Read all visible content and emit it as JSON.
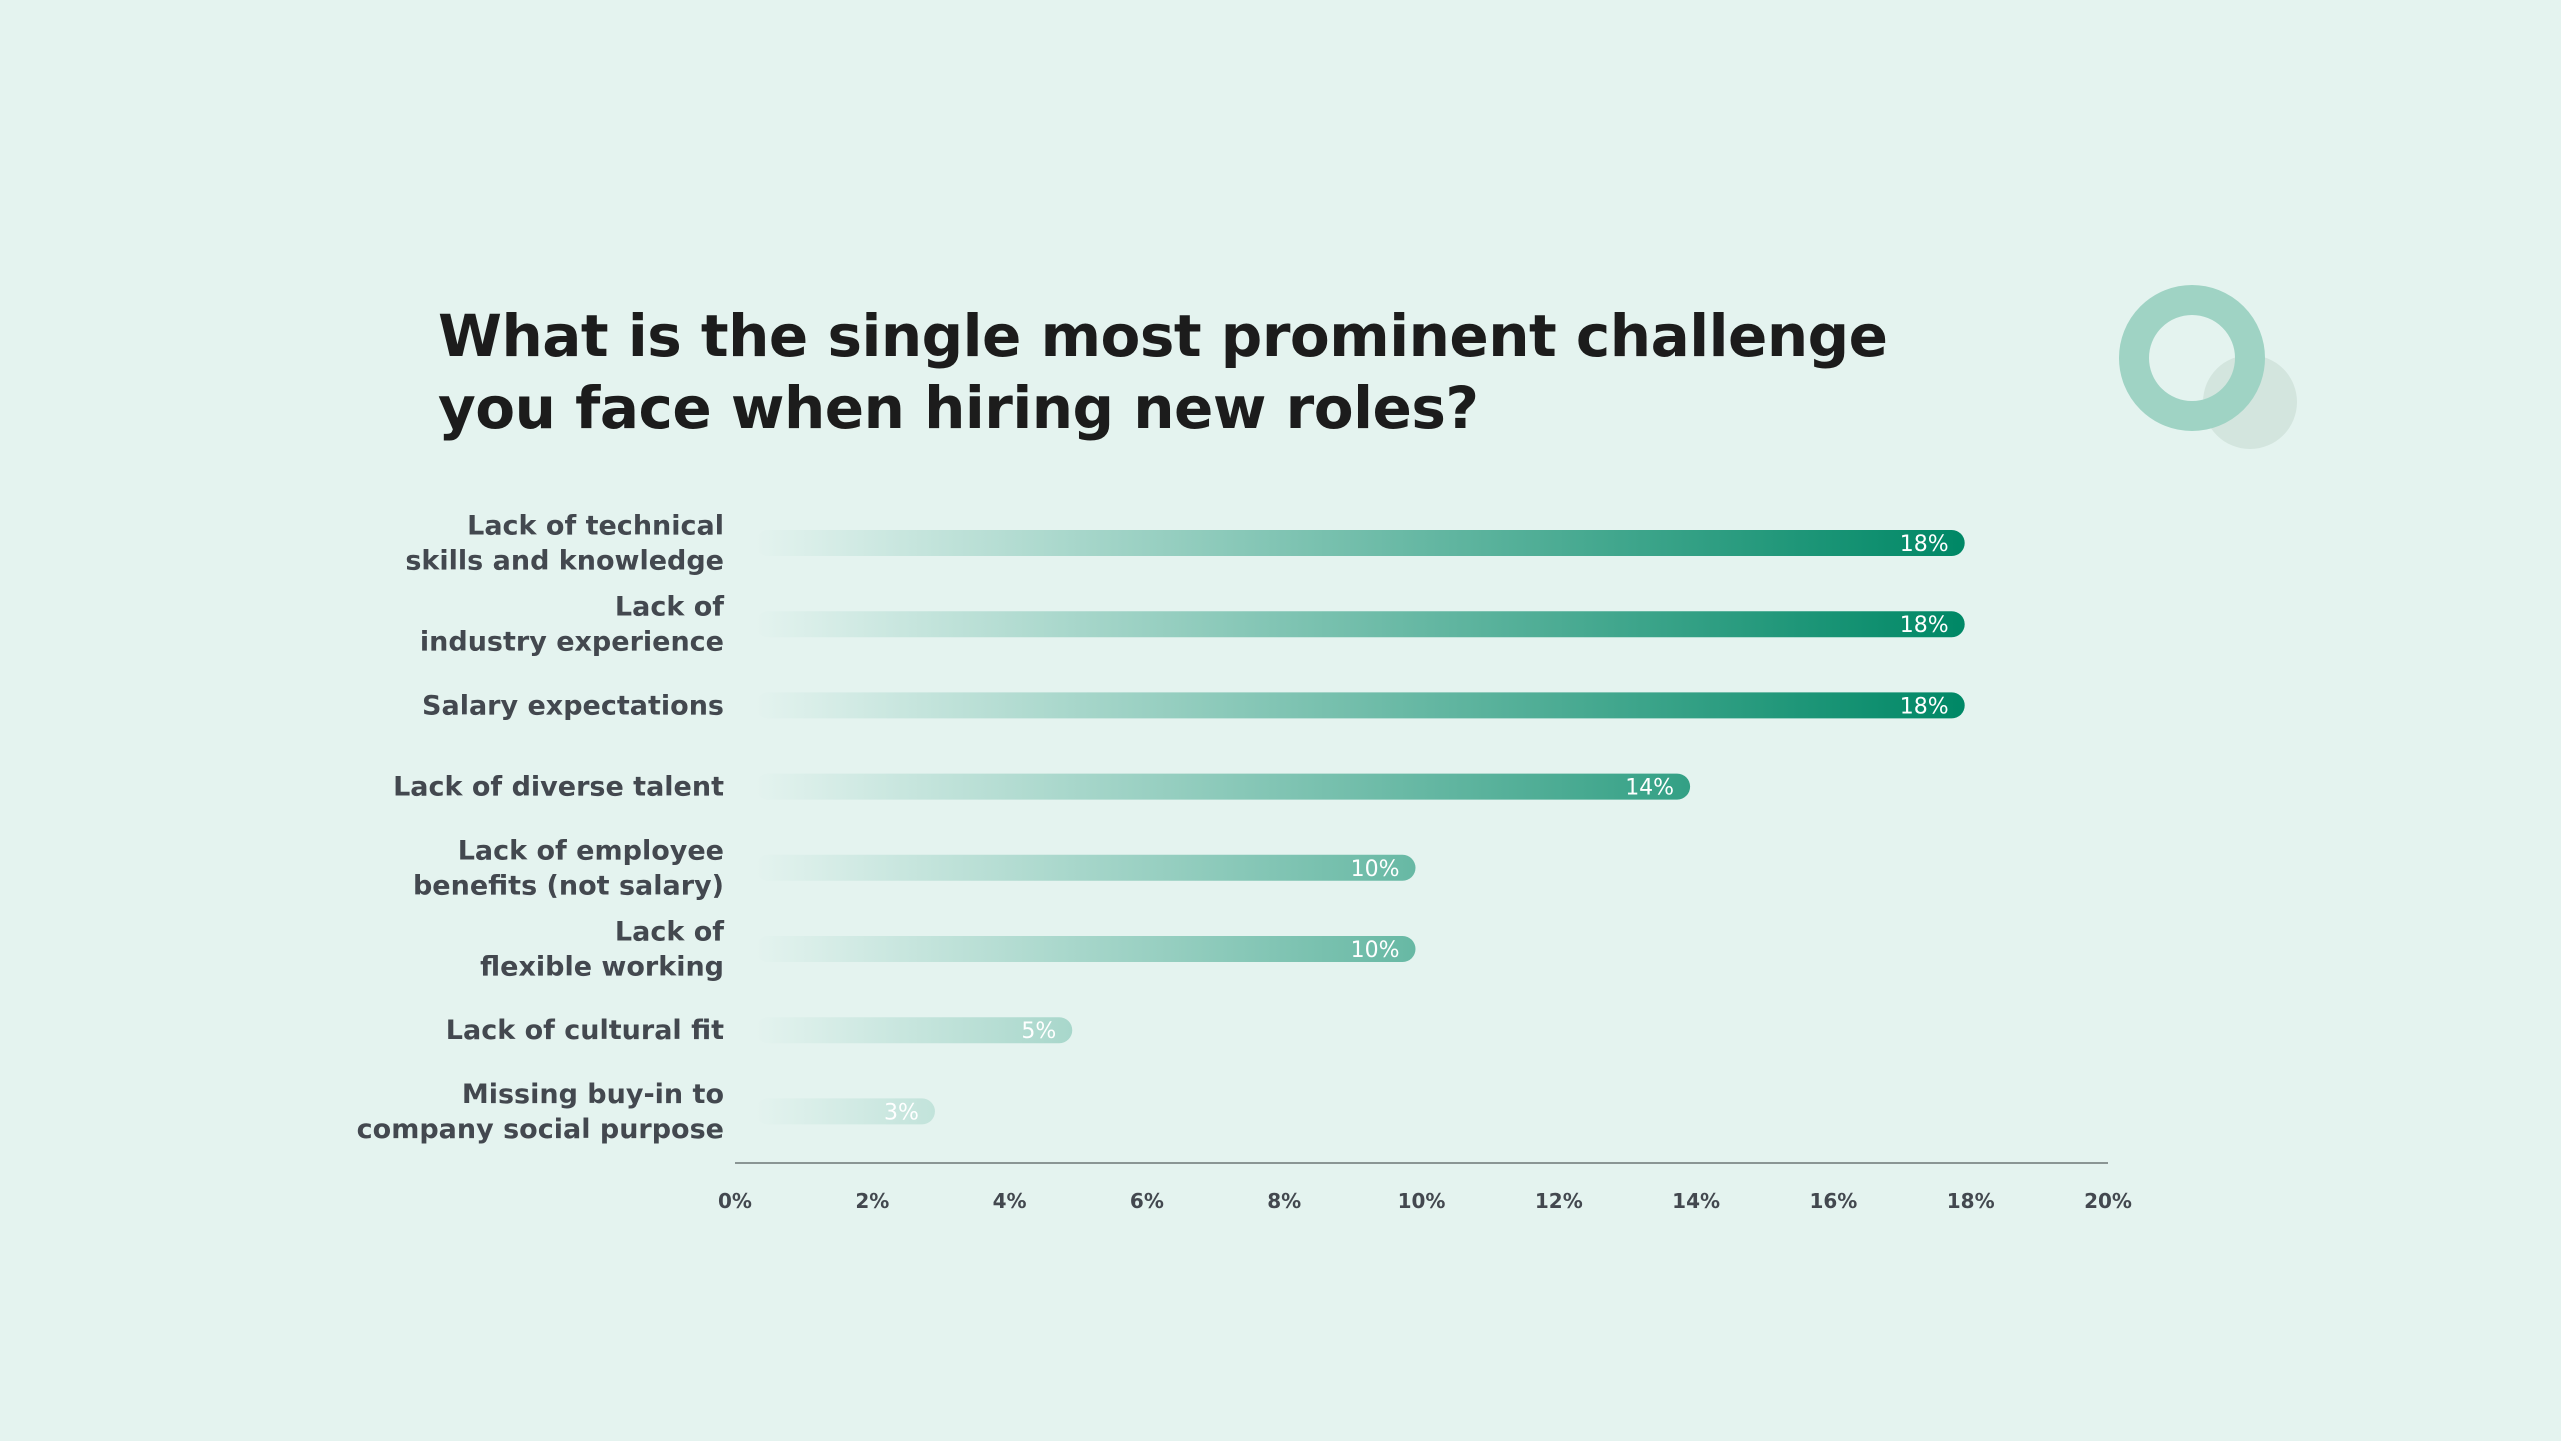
{
  "colors": {
    "background": "#e4f3ef",
    "bar_start": "#e4f3ef",
    "bar_end": "#008866",
    "title": "#1c1c1c",
    "label": "#43484f",
    "axis": "#8a9594",
    "deco_ring": "#9fd3c4",
    "deco_circle": "#d3e5de"
  },
  "icons": {
    "decoration": "ring-and-circle-decoration"
  },
  "chart_data": {
    "type": "bar",
    "orientation": "horizontal",
    "title_lines": [
      "What is the single most prominent challenge",
      "you face when hiring new roles?"
    ],
    "categories": [
      [
        "Lack of technical",
        "skills and knowledge"
      ],
      [
        "Lack of",
        "industry experience"
      ],
      [
        "Salary expectations"
      ],
      [
        "Lack of diverse talent"
      ],
      [
        "Lack of employee",
        "benefits (not salary)"
      ],
      [
        "Lack of",
        "flexible working"
      ],
      [
        "Lack of cultural fit"
      ],
      [
        "Missing buy-in to",
        "company social purpose"
      ]
    ],
    "values": [
      18,
      18,
      18,
      14,
      10,
      10,
      5,
      3
    ],
    "value_labels": [
      "18%",
      "18%",
      "18%",
      "14%",
      "10%",
      "10%",
      "5%",
      "3%"
    ],
    "xlim": [
      0,
      20
    ],
    "x_ticks": [
      "0%",
      "2%",
      "4%",
      "6%",
      "8%",
      "10%",
      "12%",
      "14%",
      "16%",
      "18%",
      "20%"
    ],
    "grid": false,
    "legend": "none"
  }
}
